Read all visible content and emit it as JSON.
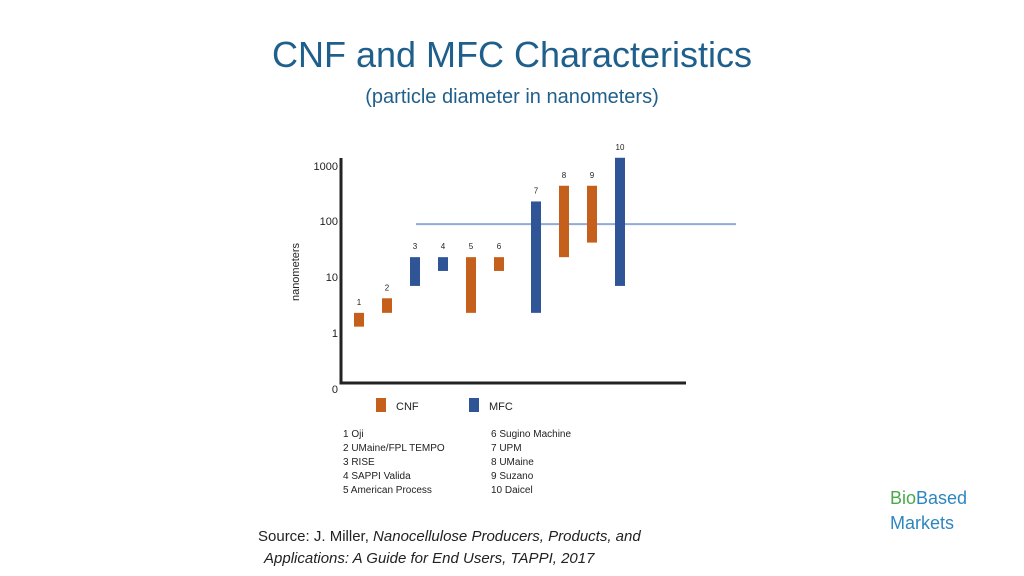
{
  "slide": {
    "title": "CNF and MFC Characteristics",
    "subtitle": "(particle diameter in nanometers)",
    "source_prefix": "Source: J. Miller, ",
    "source_italic_1": "Nanocellulose Producers, Products, and",
    "source_italic_2": "Applications: A Guide for End Users, TAPPI, 2017",
    "brand_bio": "Bio",
    "brand_based": "Based",
    "brand_markets": "Markets"
  },
  "chart_data": {
    "type": "bar",
    "title": "",
    "ylabel": "nanometers",
    "yscale": "log",
    "ytick_labels": [
      "0",
      "1",
      "10",
      "100",
      "1000"
    ],
    "reference_line_y": 90,
    "colors": {
      "CNF": "#c5601c",
      "MFC": "#2f5597",
      "reference": "#8faadc"
    },
    "legend": [
      "CNF",
      "MFC"
    ],
    "bars": [
      {
        "id": "1",
        "series": "CNF",
        "low": 1.3,
        "high": 2.3
      },
      {
        "id": "2",
        "series": "CNF",
        "low": 2.3,
        "high": 4.2
      },
      {
        "id": "3",
        "series": "MFC",
        "low": 7,
        "high": 23
      },
      {
        "id": "4",
        "series": "MFC",
        "low": 13,
        "high": 23
      },
      {
        "id": "5",
        "series": "CNF",
        "low": 2.3,
        "high": 23
      },
      {
        "id": "6",
        "series": "CNF",
        "low": 13,
        "high": 23
      },
      {
        "id": "7",
        "series": "MFC",
        "low": 2.3,
        "high": 230
      },
      {
        "id": "8",
        "series": "CNF",
        "low": 23,
        "high": 440
      },
      {
        "id": "9",
        "series": "CNF",
        "low": 42,
        "high": 440
      },
      {
        "id": "10",
        "series": "MFC",
        "low": 7,
        "high": 1400
      }
    ],
    "producers": [
      "1 Oji",
      "2 UMaine/FPL TEMPO",
      "3 RISE",
      "4  SAPPI Valida",
      "5 American Process",
      "6 Sugino Machine",
      "7 UPM",
      "8 UMaine",
      "9 Suzano",
      "10 Daicel"
    ]
  }
}
